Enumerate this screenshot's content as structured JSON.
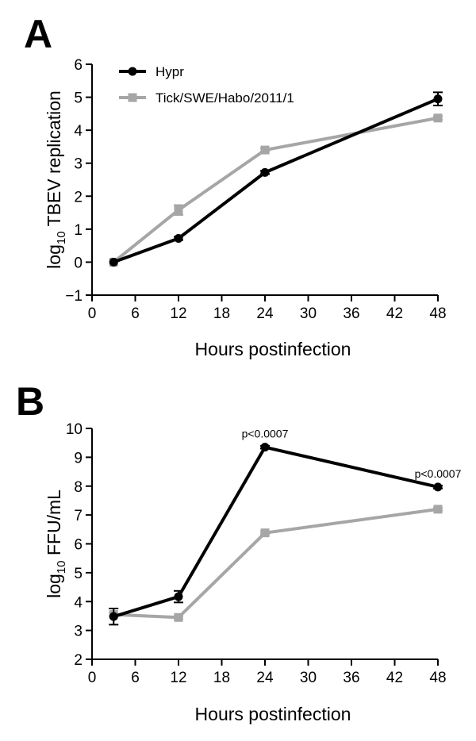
{
  "chart_data": [
    {
      "panel": "A",
      "type": "line",
      "title": "",
      "xlabel": "Hours postinfection",
      "ylabel_main": "log",
      "ylabel_sub": "10",
      "ylabel_rest": " TBEV replication",
      "xlim": [
        0,
        48
      ],
      "ylim": [
        -1,
        6
      ],
      "xticks": [
        0,
        6,
        12,
        18,
        24,
        30,
        36,
        42,
        48
      ],
      "yticks": [
        -1,
        0,
        1,
        2,
        3,
        4,
        5,
        6
      ],
      "ytick_labels": [
        "−1",
        "0",
        "1",
        "2",
        "3",
        "4",
        "5",
        "6"
      ],
      "legend_position": "top-left",
      "x": [
        3,
        12,
        24,
        48
      ],
      "series": [
        {
          "name": "Hypr",
          "values": [
            0.0,
            0.72,
            2.72,
            4.95
          ],
          "errors": [
            0,
            0.05,
            0.05,
            0.2
          ],
          "color": "#000000",
          "marker": "circle"
        },
        {
          "name": "Tick/SWE/Habo/2011/1",
          "values": [
            0.0,
            1.58,
            3.4,
            4.37
          ],
          "errors": [
            0,
            0.15,
            0.05,
            0.05
          ],
          "color": "#a6a6a6",
          "marker": "square"
        }
      ],
      "annotations": []
    },
    {
      "panel": "B",
      "type": "line",
      "title": "",
      "xlabel": "Hours postinfection",
      "ylabel_main": "log",
      "ylabel_sub": "10",
      "ylabel_rest": " FFU/mL",
      "xlim": [
        0,
        48
      ],
      "ylim": [
        2,
        10
      ],
      "xticks": [
        0,
        6,
        12,
        18,
        24,
        30,
        36,
        42,
        48
      ],
      "yticks": [
        2,
        3,
        4,
        5,
        6,
        7,
        8,
        9,
        10
      ],
      "ytick_labels": [
        "2",
        "3",
        "4",
        "5",
        "6",
        "7",
        "8",
        "9",
        "10"
      ],
      "x": [
        3,
        12,
        24,
        48
      ],
      "series": [
        {
          "name": "Hypr",
          "values": [
            3.48,
            4.17,
            9.35,
            7.97
          ],
          "errors": [
            0.28,
            0.2,
            0.05,
            0.05
          ],
          "color": "#000000",
          "marker": "circle"
        },
        {
          "name": "Tick/SWE/Habo/2011/1",
          "values": [
            3.55,
            3.45,
            6.38,
            7.2
          ],
          "errors": [
            0.05,
            0.05,
            0.05,
            0.05
          ],
          "color": "#a6a6a6",
          "marker": "square"
        }
      ],
      "annotations": [
        {
          "x": 24,
          "y": 9.35,
          "text": "p<0.0007"
        },
        {
          "x": 48,
          "y": 7.97,
          "text": "p<0.0007"
        }
      ]
    }
  ]
}
